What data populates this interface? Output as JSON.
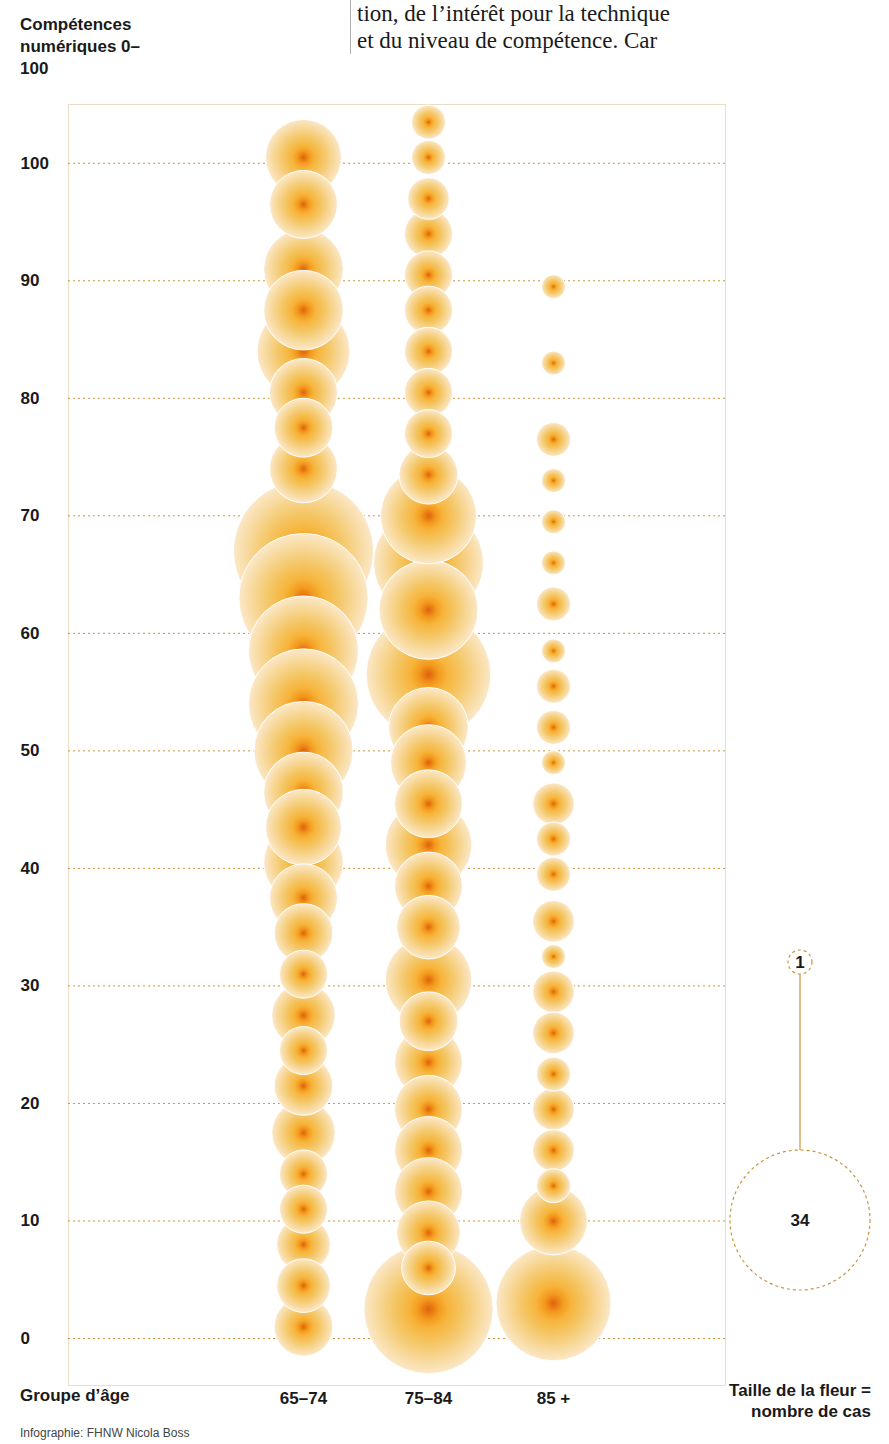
{
  "chart_data": {
    "type": "bubble",
    "annotations": [
      "tion, de l’intérêt pour la technique",
      "et du niveau de compétence. Car"
    ],
    "y_label": "Compétences numériques 0–100",
    "x_label": "Groupe d’âge",
    "categories": [
      "65–74",
      "75–84",
      "85 +"
    ],
    "groups": [
      {
        "y": [
          100.5,
          96.5,
          91,
          87.5,
          84,
          80.5,
          77.5,
          74,
          67,
          63,
          58.5,
          54,
          50,
          46.5,
          43.5,
          40.5,
          37.5,
          34.5,
          31,
          27.5,
          24.5,
          21.5,
          17.5,
          14,
          11,
          8,
          4.5,
          1
        ],
        "size": [
          10,
          8,
          11,
          11,
          15,
          8,
          6,
          8,
          34,
          29,
          21,
          21,
          17,
          11,
          10,
          11,
          8,
          6,
          4,
          7,
          4,
          6,
          7,
          4,
          4,
          5,
          5,
          6
        ]
      },
      {
        "y": [
          103.5,
          100.5,
          97,
          94,
          90.5,
          87.5,
          84,
          80.5,
          77,
          73.5,
          70,
          66,
          62,
          56.5,
          52,
          49,
          45.5,
          42,
          38.5,
          35,
          30.5,
          27,
          23.5,
          19.5,
          16,
          12.5,
          9,
          6,
          2.5
        ],
        "size": [
          2,
          2,
          3,
          4,
          4,
          4,
          4,
          4,
          4,
          6,
          16,
          21,
          17,
          27,
          11,
          10,
          8,
          13,
          8,
          7,
          13,
          6,
          8,
          8,
          8,
          8,
          7,
          5,
          29
        ]
      },
      {
        "y": [
          89.5,
          83,
          76.5,
          73,
          69.5,
          66,
          62.5,
          58.5,
          55.5,
          52,
          49,
          45.5,
          42.5,
          39.5,
          35.5,
          32.5,
          29.5,
          26,
          22.5,
          19.5,
          16,
          13,
          10,
          3
        ],
        "size": [
          1,
          1,
          2,
          1,
          1,
          1,
          2,
          1,
          2,
          2,
          1,
          3,
          2,
          2,
          3,
          1,
          3,
          3,
          2,
          3,
          3,
          2,
          8,
          23
        ]
      }
    ],
    "ylim": [
      -4,
      105
    ],
    "yticks": [
      0,
      10,
      20,
      30,
      40,
      50,
      60,
      70,
      80,
      90,
      100
    ],
    "grid": true,
    "color": "#f4c768",
    "size_legend": {
      "title": "Taille de la fleur = nombre de cas",
      "values": [
        1,
        34
      ]
    },
    "source": "Infographie: FHNW Nicola Boss"
  }
}
